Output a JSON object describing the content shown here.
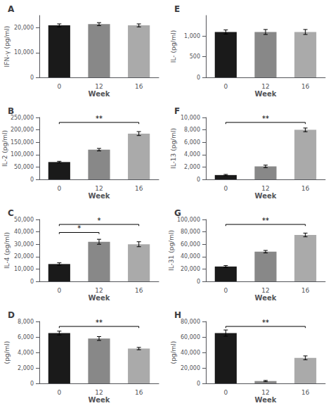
{
  "chart_data": [
    {
      "type": "bar",
      "title": "A",
      "xlabel": "Week",
      "ylabel": "IFN-γ (pg/ml)",
      "categories": [
        "0",
        "12",
        "16"
      ],
      "values": [
        21000,
        21500,
        21000
      ],
      "errors": [
        600,
        600,
        600
      ],
      "colors": [
        "#1a1a1a",
        "#888888",
        "#aaaaaa"
      ],
      "ylim": [
        0,
        25000
      ],
      "yticks": [
        0,
        10000,
        20000
      ],
      "grid": false,
      "annotations": []
    },
    {
      "type": "bar",
      "title": "B",
      "xlabel": "Week",
      "ylabel": "IL-2 (pg/ml)",
      "categories": [
        "0",
        "12",
        "16"
      ],
      "values": [
        70000,
        120000,
        185000
      ],
      "errors": [
        3000,
        5000,
        8000
      ],
      "colors": [
        "#1a1a1a",
        "#888888",
        "#aaaaaa"
      ],
      "ylim": [
        0,
        250000
      ],
      "yticks": [
        0,
        50000,
        100000,
        150000,
        200000,
        250000
      ],
      "grid": false,
      "annotations": [
        {
          "text": "**",
          "from": "0",
          "to": "16"
        }
      ]
    },
    {
      "type": "bar",
      "title": "C",
      "xlabel": "Week",
      "ylabel": "IL-4 (pg/ml)",
      "categories": [
        "0",
        "12",
        "16"
      ],
      "values": [
        14000,
        32000,
        30000
      ],
      "errors": [
        1000,
        2000,
        2000
      ],
      "colors": [
        "#1a1a1a",
        "#888888",
        "#aaaaaa"
      ],
      "ylim": [
        0,
        50000
      ],
      "yticks": [
        0,
        10000,
        20000,
        30000,
        40000,
        50000
      ],
      "grid": false,
      "annotations": [
        {
          "text": "*",
          "from": "0",
          "to": "12"
        },
        {
          "text": "*",
          "from": "0",
          "to": "16"
        }
      ]
    },
    {
      "type": "bar",
      "title": "D",
      "xlabel": "Week",
      "ylabel": "(pg/ml)",
      "categories": [
        "0",
        "12",
        "16"
      ],
      "values": [
        6500,
        5800,
        4500
      ],
      "errors": [
        250,
        250,
        150
      ],
      "colors": [
        "#1a1a1a",
        "#888888",
        "#aaaaaa"
      ],
      "ylim": [
        0,
        8000
      ],
      "yticks": [
        0,
        2000,
        4000,
        6000,
        8000
      ],
      "grid": false,
      "annotations": [
        {
          "text": "**",
          "from": "0",
          "to": "16"
        }
      ]
    },
    {
      "type": "bar",
      "title": "E",
      "xlabel": "Week",
      "ylabel": "IL- (pg/ml)",
      "categories": [
        "0",
        "12",
        "16"
      ],
      "values": [
        1100,
        1100,
        1100
      ],
      "errors": [
        50,
        60,
        60
      ],
      "colors": [
        "#1a1a1a",
        "#888888",
        "#aaaaaa"
      ],
      "ylim": [
        0,
        1500
      ],
      "yticks": [
        0,
        500,
        1000
      ],
      "grid": false,
      "annotations": []
    },
    {
      "type": "bar",
      "title": "F",
      "xlabel": "Week",
      "ylabel": "IL-13 (pg/ml)",
      "categories": [
        "0",
        "12",
        "16"
      ],
      "values": [
        700,
        2100,
        8000
      ],
      "errors": [
        100,
        200,
        300
      ],
      "colors": [
        "#1a1a1a",
        "#888888",
        "#aaaaaa"
      ],
      "ylim": [
        0,
        10000
      ],
      "yticks": [
        0,
        2000,
        4000,
        6000,
        8000,
        10000
      ],
      "grid": false,
      "annotations": [
        {
          "text": "**",
          "from": "0",
          "to": "16"
        }
      ]
    },
    {
      "type": "bar",
      "title": "G",
      "xlabel": "Week",
      "ylabel": "IL-31 (pg/ml)",
      "categories": [
        "0",
        "12",
        "16"
      ],
      "values": [
        24000,
        48000,
        75000
      ],
      "errors": [
        1500,
        2000,
        3000
      ],
      "colors": [
        "#1a1a1a",
        "#888888",
        "#aaaaaa"
      ],
      "ylim": [
        0,
        100000
      ],
      "yticks": [
        0,
        20000,
        40000,
        60000,
        80000,
        100000
      ],
      "grid": false,
      "annotations": [
        {
          "text": "**",
          "from": "0",
          "to": "16"
        }
      ]
    },
    {
      "type": "bar",
      "title": "H",
      "xlabel": "Week",
      "ylabel": "(pg/ml)",
      "categories": [
        "0",
        "12",
        "16"
      ],
      "values": [
        65000,
        3000,
        33000
      ],
      "errors": [
        4000,
        800,
        2500
      ],
      "colors": [
        "#1a1a1a",
        "#888888",
        "#aaaaaa"
      ],
      "ylim": [
        0,
        80000
      ],
      "yticks": [
        0,
        20000,
        40000,
        60000,
        80000
      ],
      "grid": false,
      "annotations": [
        {
          "text": "**",
          "from": "0",
          "to": "16"
        }
      ]
    }
  ]
}
